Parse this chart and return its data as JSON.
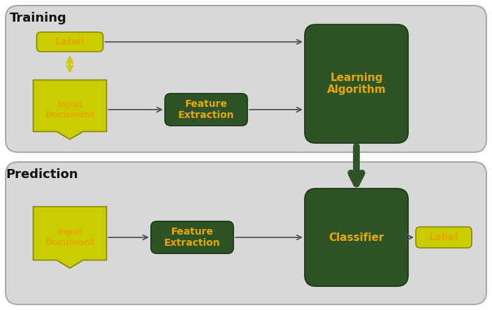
{
  "fig_width": 7.04,
  "fig_height": 4.44,
  "dpi": 100,
  "bg_color": "#ffffff",
  "panel_color": "#d8d8d8",
  "panel_edge_color": "#aaaaaa",
  "dark_green": "#2e5327",
  "dark_green_edge": "#1a3315",
  "yellow_green": "#c8cc00",
  "yellow_green_edge": "#8a8800",
  "yellow_text": "#e6a800",
  "black_text": "#111111",
  "arrow_dark": "#555555",
  "fat_arrow_color": "#2e5327",
  "title_training": "Training",
  "title_prediction": "Prediction",
  "label_top": "Label",
  "input_doc_train": "Input\nDocument",
  "feature_extract_train": "Feature\nExtraction",
  "learning_algo": "Learning\nAlgorithm",
  "input_doc_pred": "Input\nDocument",
  "feature_extract_pred": "Feature\nExtraction",
  "classifier": "Classifier",
  "label_pred": "Label"
}
